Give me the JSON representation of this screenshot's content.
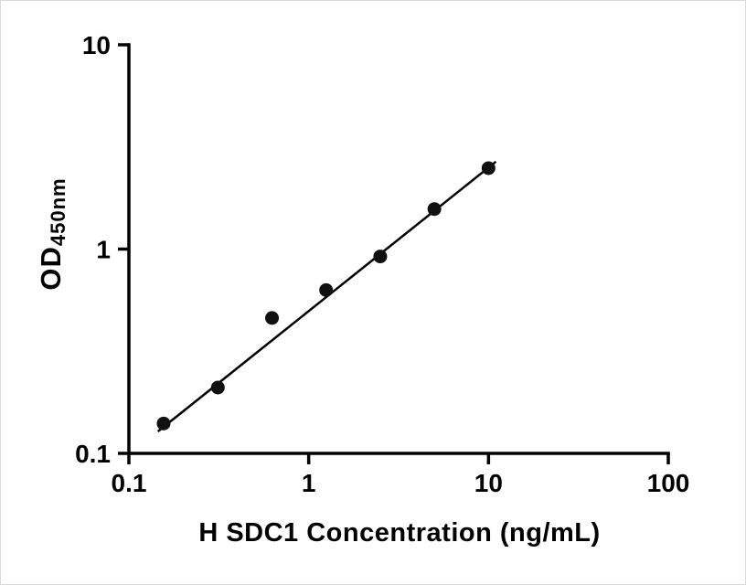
{
  "chart_data": {
    "type": "scatter",
    "title": "",
    "xlabel": "H SDC1 Concentration (ng/mL)",
    "ylabel": {
      "prefix": "OD",
      "subscript": "450nm"
    },
    "x_scale": "log",
    "y_scale": "log",
    "xlim": [
      0.1,
      100
    ],
    "ylim": [
      0.1,
      10
    ],
    "grid": false,
    "legend": null,
    "x_ticks": [
      {
        "value": 0.1,
        "label": "0.1"
      },
      {
        "value": 1,
        "label": "1"
      },
      {
        "value": 10,
        "label": "10"
      },
      {
        "value": 100,
        "label": "100"
      }
    ],
    "y_ticks": [
      {
        "value": 0.1,
        "label": "0.1"
      },
      {
        "value": 1,
        "label": "1"
      },
      {
        "value": 10,
        "label": "10"
      }
    ],
    "points": [
      {
        "x": 0.156,
        "y": 0.14
      },
      {
        "x": 0.3125,
        "y": 0.21
      },
      {
        "x": 0.625,
        "y": 0.46
      },
      {
        "x": 1.25,
        "y": 0.63
      },
      {
        "x": 2.5,
        "y": 0.92
      },
      {
        "x": 5,
        "y": 1.57
      },
      {
        "x": 10,
        "y": 2.49
      }
    ],
    "fit_line": {
      "x1": 0.145,
      "y1": 0.128,
      "x2": 11,
      "y2": 2.68
    },
    "colors": {
      "point": "#111111",
      "line": "#000000",
      "axis": "#000000",
      "background": "#ffffff"
    }
  }
}
